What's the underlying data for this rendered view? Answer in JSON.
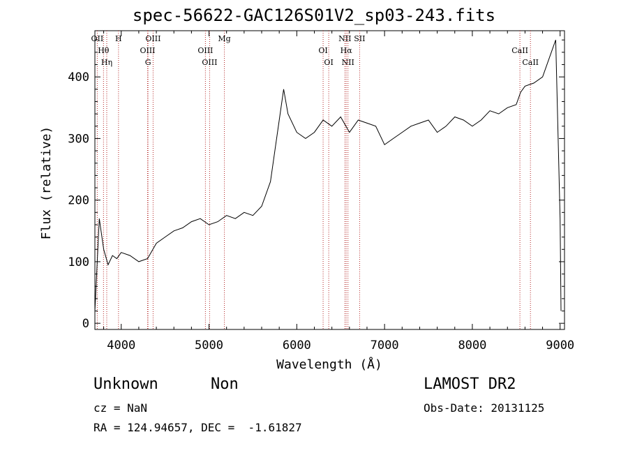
{
  "title": "spec-56622-GAC126S01V2_sp03-243.fits",
  "info": {
    "classification": "Unknown",
    "subclass": "Non",
    "cz": "cz = NaN",
    "coords": "RA = 124.94657, DEC =  -1.61827",
    "survey": "LAMOST DR2",
    "obs_date": "Obs-Date: 20131125"
  },
  "chart_data": {
    "type": "line",
    "xlabel": "Wavelength (Å)",
    "ylabel": "Flux (relative)",
    "xlim": [
      3700,
      9050
    ],
    "ylim": [
      -10,
      475
    ],
    "x_ticks": [
      4000,
      5000,
      6000,
      7000,
      8000,
      9000
    ],
    "y_ticks": [
      0,
      100,
      200,
      300,
      400
    ],
    "line_color": "#000000",
    "marker_color": "#b22222",
    "series": [
      {
        "x": [
          3700,
          3750,
          3800,
          3850,
          3900,
          3950,
          4000,
          4100,
          4200,
          4300,
          4400,
          4500,
          4600,
          4700,
          4800,
          4900,
          5000,
          5100,
          5200,
          5300,
          5400,
          5500,
          5600,
          5700,
          5750,
          5800,
          5850,
          5900,
          6000,
          6100,
          6200,
          6300,
          6400,
          6500,
          6600,
          6700,
          6800,
          6900,
          7000,
          7100,
          7200,
          7300,
          7400,
          7500,
          7600,
          7700,
          7800,
          7900,
          8000,
          8100,
          8200,
          8300,
          8400,
          8500,
          8550,
          8600,
          8700,
          8800,
          8900,
          8950,
          9000,
          9010
        ],
        "y": [
          20,
          170,
          120,
          95,
          110,
          105,
          115,
          110,
          100,
          105,
          130,
          140,
          150,
          155,
          165,
          170,
          160,
          165,
          175,
          170,
          180,
          175,
          190,
          230,
          280,
          330,
          380,
          340,
          310,
          300,
          310,
          330,
          320,
          335,
          310,
          330,
          325,
          320,
          290,
          300,
          310,
          320,
          325,
          330,
          310,
          320,
          335,
          330,
          320,
          330,
          345,
          340,
          350,
          355,
          375,
          385,
          390,
          400,
          440,
          460,
          170,
          20
        ]
      }
    ],
    "lines": [
      {
        "label": "OII",
        "x": 3727
      },
      {
        "label": "Hθ",
        "x": 3798
      },
      {
        "label": "Hη",
        "x": 3835
      },
      {
        "label": "H",
        "x": 3969
      },
      {
        "label": "OIII",
        "x": 4300
      },
      {
        "label": "G",
        "x": 4305
      },
      {
        "label": "OIII",
        "x": 4363
      },
      {
        "label": "OIII",
        "x": 4959
      },
      {
        "label": "OIII",
        "x": 5007
      },
      {
        "label": "Mg",
        "x": 5175
      },
      {
        "label": "OI",
        "x": 6300
      },
      {
        "label": "OI",
        "x": 6364
      },
      {
        "label": "NII",
        "x": 6548
      },
      {
        "label": "Hα",
        "x": 6563
      },
      {
        "label": "NII",
        "x": 6583
      },
      {
        "label": "SII",
        "x": 6716
      },
      {
        "label": "CaII",
        "x": 8542
      },
      {
        "label": "CaII",
        "x": 8662
      }
    ]
  }
}
